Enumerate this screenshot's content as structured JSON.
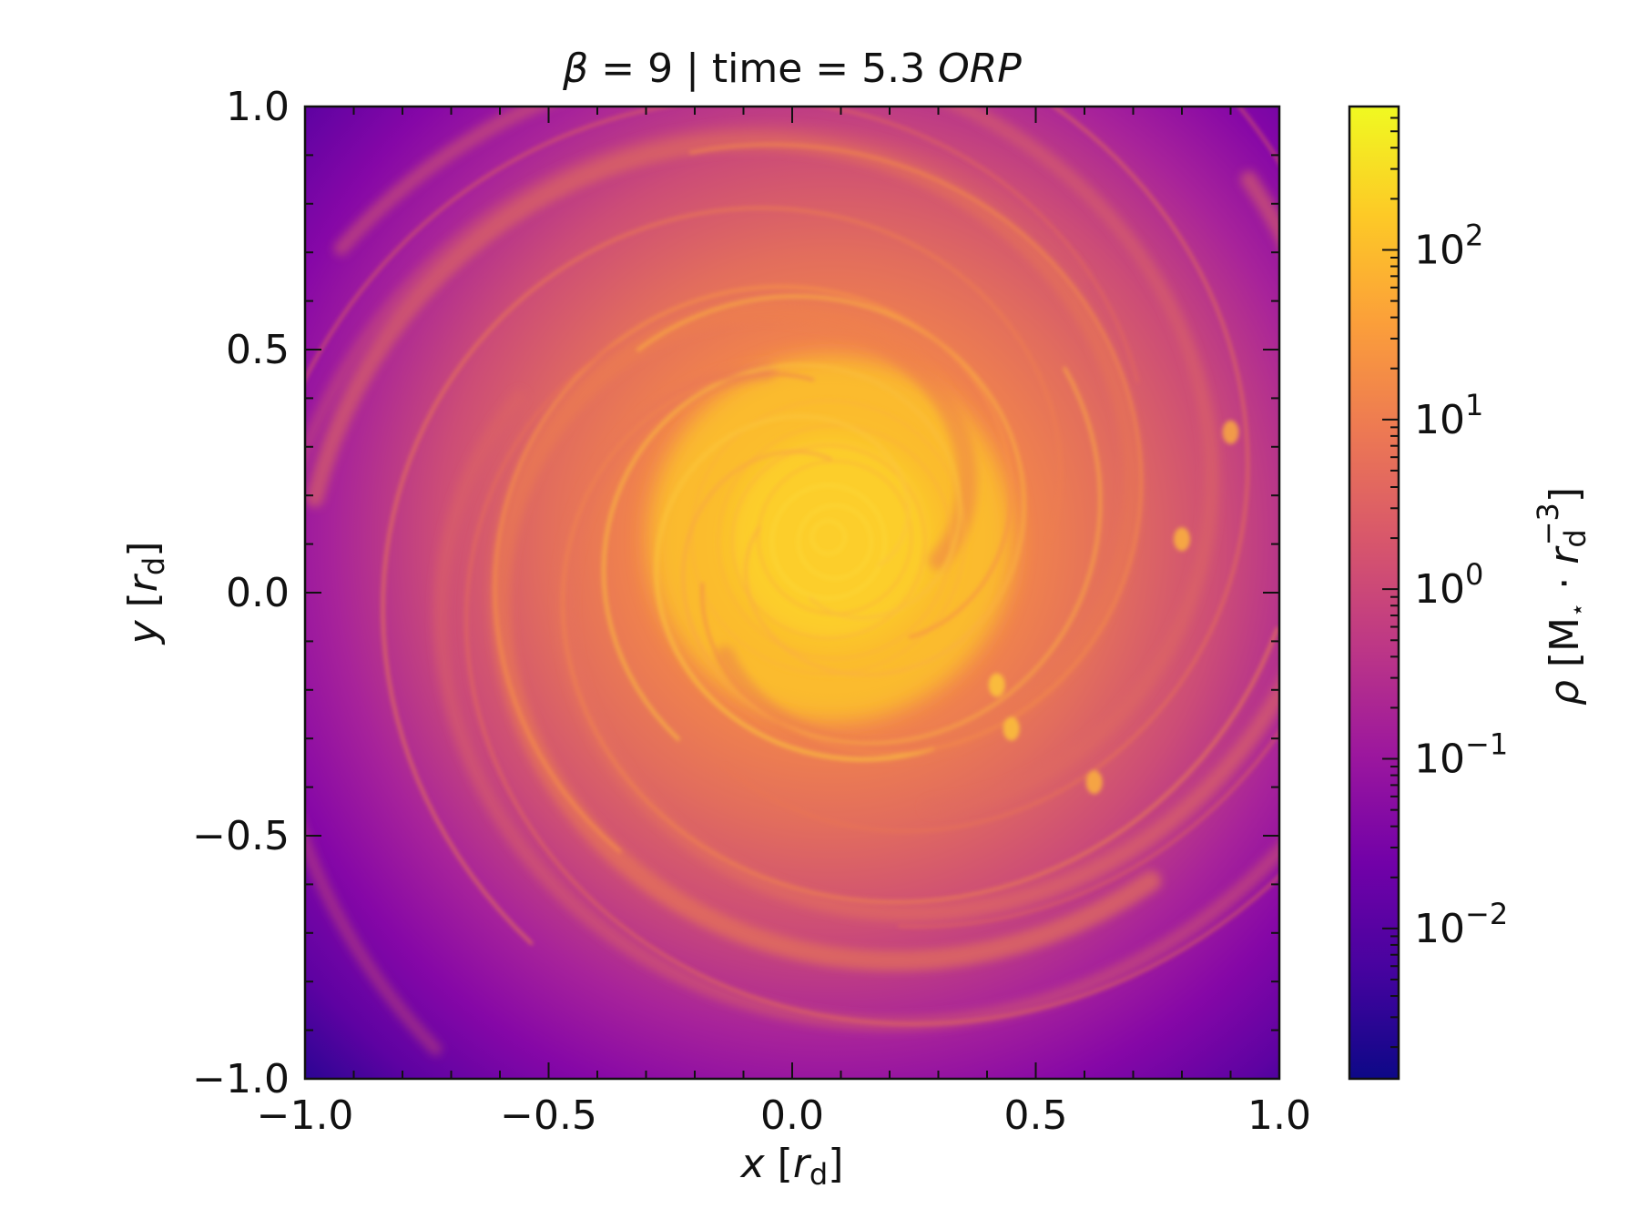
{
  "chart_data": {
    "type": "heatmap",
    "title": {
      "prefix_symbol": "β",
      "middle": " = 9 | time = 5.3 ",
      "suffix_italic": "ORP"
    },
    "xlabel": {
      "var": "x",
      "open": " [",
      "unit": "r",
      "sub": "d",
      "close": "]"
    },
    "ylabel": {
      "var": "y",
      "open": " [",
      "unit": "r",
      "sub": "d",
      "close": "]"
    },
    "xlim": [
      -1.0,
      1.0
    ],
    "ylim": [
      -1.0,
      1.0
    ],
    "xticks": [
      -1.0,
      -0.5,
      0.0,
      0.5,
      1.0
    ],
    "yticks": [
      -1.0,
      -0.5,
      0.0,
      0.5,
      1.0
    ],
    "xticklabels": [
      "−1.0",
      "−0.5",
      "0.0",
      "0.5",
      "1.0"
    ],
    "yticklabels": [
      "−1.0",
      "−0.5",
      "0.0",
      "0.5",
      "1.0"
    ],
    "colormap": "plasma",
    "colorbar": {
      "scale": "log",
      "range": [
        0.0013,
        700
      ],
      "ticks": [
        {
          "value": 0.01,
          "base": "10",
          "exp": "−2"
        },
        {
          "value": 0.1,
          "base": "10",
          "exp": "−1"
        },
        {
          "value": 1,
          "base": "10",
          "exp": "0"
        },
        {
          "value": 10,
          "base": "10",
          "exp": "1"
        },
        {
          "value": 100,
          "base": "10",
          "exp": "2"
        }
      ],
      "label": {
        "symbol": "ρ",
        "open": " [M",
        "star": "⋆",
        "mid": " · ",
        "unit": "r",
        "sub": "d",
        "sup": "−3",
        "close": "]"
      }
    },
    "field_description_peak": {
      "x": 0.08,
      "y": 0.11
    },
    "peak_density": 500,
    "edge_density": 0.0013,
    "colors": {
      "plasma_stops": [
        "#0d0887",
        "#46039f",
        "#7201a8",
        "#9c179e",
        "#bd3786",
        "#d8576b",
        "#ed7953",
        "#fb9f3a",
        "#fdca26",
        "#f0f921"
      ]
    }
  }
}
